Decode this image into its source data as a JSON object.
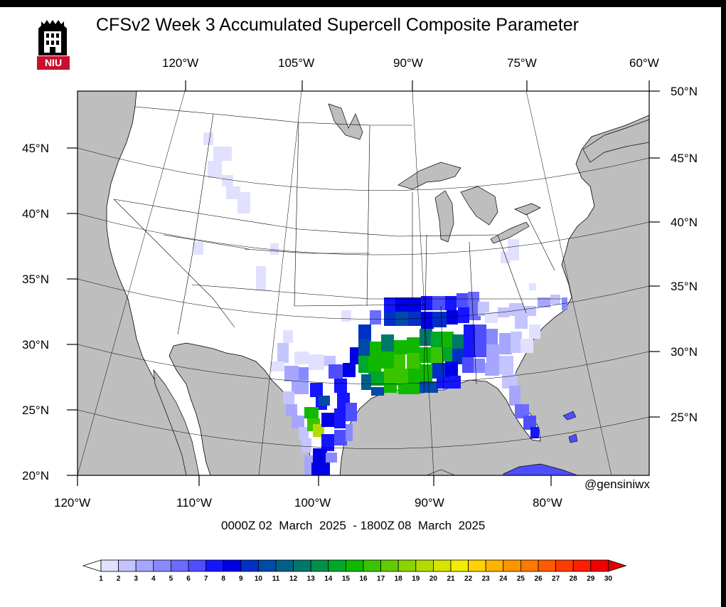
{
  "title": "CFSv2 Week 3 Accumulated Supercell Composite Parameter",
  "logo_text": "NIU",
  "handle": "@gensiniwx",
  "date_range": "0000Z 02  March  2025  - 1800Z 08  March  2025",
  "top_axis_labels": [
    "120°W",
    "105°W",
    "90°W",
    "75°W",
    "60°W"
  ],
  "bottom_axis_labels": [
    "120°W",
    "110°W",
    "100°W",
    "90°W",
    "80°W"
  ],
  "left_axis_labels": [
    "45°N",
    "40°N",
    "35°N",
    "30°N",
    "25°N",
    "20°N"
  ],
  "right_axis_labels": [
    "50°N",
    "45°N",
    "40°N",
    "35°N",
    "30°N",
    "25°N"
  ],
  "colorbar": {
    "labels": [
      "1",
      "2",
      "3",
      "4",
      "5",
      "6",
      "7",
      "8",
      "9",
      "10",
      "11",
      "12",
      "13",
      "14",
      "15",
      "16",
      "17",
      "18",
      "19",
      "20",
      "21",
      "22",
      "23",
      "24",
      "25",
      "26",
      "27",
      "28",
      "29",
      "30"
    ],
    "colors": [
      "#ffffff",
      "#e1e1ff",
      "#c4c4ff",
      "#a6a6ff",
      "#8989ff",
      "#6b6bff",
      "#4e4eff",
      "#1515ff",
      "#0000e6",
      "#0030c8",
      "#004aa8",
      "#006088",
      "#007868",
      "#00904a",
      "#00a82a",
      "#10b800",
      "#3ac400",
      "#62cc00",
      "#8ad400",
      "#b2dc00",
      "#d6e400",
      "#f4ec00",
      "#ffd200",
      "#ffb400",
      "#ff9600",
      "#ff7800",
      "#ff5a00",
      "#ff3c00",
      "#ff1e00",
      "#f00000",
      "#e00000"
    ]
  },
  "colors": {
    "land": "#ffffff",
    "water": "#bebebe",
    "frame": "#000000"
  }
}
